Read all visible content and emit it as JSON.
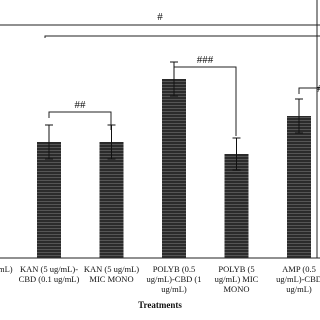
{
  "chart_data": {
    "type": "bar",
    "x_label": "Treatments",
    "categories": [
      "mL)",
      "KAN (5 ug/mL)-CBD (0.1 ug/mL)",
      "KAN (5 ug/mL) MIC MONO",
      "POLYB (0.5 ug/mL)-CBD (1 ug/mL)",
      "POLYB (5 ug/mL) MIC MONO",
      "AMP (0.5 ug/mL)-CBD ug/mL)"
    ],
    "values": [
      null,
      46.4,
      46.4,
      71.6,
      41.6,
      56.8
    ],
    "errors": [
      null,
      6.8,
      6.8,
      6.8,
      6.4,
      6.8
    ],
    "color": "#2b2b2b",
    "ylim": [
      0,
      100
    ],
    "annotations": [
      "#",
      "##",
      "###",
      "#"
    ]
  }
}
